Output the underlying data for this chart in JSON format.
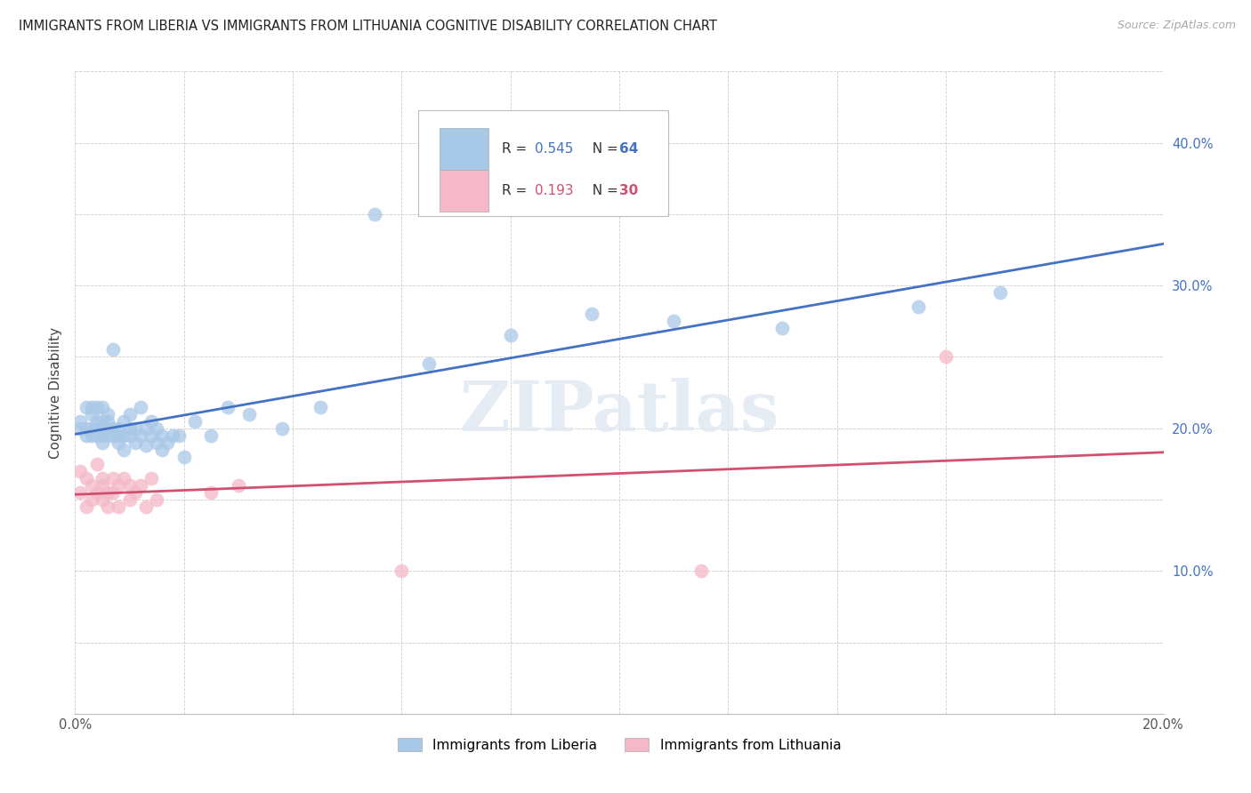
{
  "title": "IMMIGRANTS FROM LIBERIA VS IMMIGRANTS FROM LITHUANIA COGNITIVE DISABILITY CORRELATION CHART",
  "source": "Source: ZipAtlas.com",
  "ylabel": "Cognitive Disability",
  "xlim": [
    0.0,
    0.2
  ],
  "ylim": [
    0.0,
    0.45
  ],
  "x_ticks": [
    0.0,
    0.02,
    0.04,
    0.06,
    0.08,
    0.1,
    0.12,
    0.14,
    0.16,
    0.18,
    0.2
  ],
  "y_ticks": [
    0.0,
    0.05,
    0.1,
    0.15,
    0.2,
    0.25,
    0.3,
    0.35,
    0.4,
    0.45
  ],
  "liberia_R": 0.545,
  "liberia_N": 64,
  "lithuania_R": 0.193,
  "lithuania_N": 30,
  "blue_color": "#a8c8e8",
  "pink_color": "#f4b8c8",
  "blue_line_color": "#4472c4",
  "pink_line_color": "#d05070",
  "ytick_color": "#4472c4",
  "legend_blue_label": "Immigrants from Liberia",
  "legend_pink_label": "Immigrants from Lithuania",
  "watermark": "ZIPatlas",
  "liberia_x": [
    0.001,
    0.001,
    0.002,
    0.002,
    0.002,
    0.003,
    0.003,
    0.003,
    0.003,
    0.004,
    0.004,
    0.004,
    0.004,
    0.005,
    0.005,
    0.005,
    0.005,
    0.005,
    0.006,
    0.006,
    0.006,
    0.006,
    0.007,
    0.007,
    0.007,
    0.008,
    0.008,
    0.008,
    0.009,
    0.009,
    0.009,
    0.01,
    0.01,
    0.01,
    0.011,
    0.011,
    0.012,
    0.012,
    0.013,
    0.013,
    0.014,
    0.014,
    0.015,
    0.015,
    0.016,
    0.016,
    0.017,
    0.018,
    0.019,
    0.02,
    0.022,
    0.025,
    0.028,
    0.032,
    0.038,
    0.045,
    0.055,
    0.065,
    0.08,
    0.095,
    0.11,
    0.13,
    0.155,
    0.17
  ],
  "liberia_y": [
    0.2,
    0.205,
    0.195,
    0.215,
    0.2,
    0.195,
    0.21,
    0.2,
    0.215,
    0.195,
    0.205,
    0.2,
    0.215,
    0.19,
    0.2,
    0.205,
    0.195,
    0.215,
    0.2,
    0.195,
    0.21,
    0.205,
    0.195,
    0.2,
    0.255,
    0.19,
    0.2,
    0.195,
    0.185,
    0.195,
    0.205,
    0.2,
    0.195,
    0.21,
    0.19,
    0.2,
    0.195,
    0.215,
    0.188,
    0.2,
    0.195,
    0.205,
    0.19,
    0.2,
    0.185,
    0.195,
    0.19,
    0.195,
    0.195,
    0.18,
    0.205,
    0.195,
    0.215,
    0.21,
    0.2,
    0.215,
    0.35,
    0.245,
    0.265,
    0.28,
    0.275,
    0.27,
    0.285,
    0.295
  ],
  "lithuania_x": [
    0.001,
    0.001,
    0.002,
    0.002,
    0.003,
    0.003,
    0.004,
    0.004,
    0.005,
    0.005,
    0.005,
    0.006,
    0.006,
    0.007,
    0.007,
    0.008,
    0.008,
    0.009,
    0.01,
    0.01,
    0.011,
    0.012,
    0.013,
    0.014,
    0.015,
    0.025,
    0.03,
    0.06,
    0.115,
    0.16
  ],
  "lithuania_y": [
    0.17,
    0.155,
    0.165,
    0.145,
    0.16,
    0.15,
    0.175,
    0.155,
    0.165,
    0.15,
    0.16,
    0.155,
    0.145,
    0.165,
    0.155,
    0.16,
    0.145,
    0.165,
    0.15,
    0.16,
    0.155,
    0.16,
    0.145,
    0.165,
    0.15,
    0.155,
    0.16,
    0.1,
    0.1,
    0.25
  ]
}
